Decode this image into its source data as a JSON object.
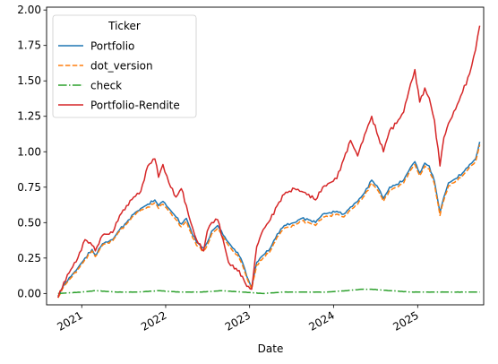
{
  "chart_data": {
    "type": "line",
    "title": "",
    "xlabel": "Date",
    "ylabel": "",
    "x_range": [
      "2020-08-01",
      "2025-10-15"
    ],
    "ylim": [
      -0.08,
      2.02
    ],
    "grid": false,
    "legend": {
      "title": "Ticker",
      "placement": "top-left"
    },
    "x_ticks": [
      {
        "date": "2021-01-01",
        "label": "2021"
      },
      {
        "date": "2022-01-01",
        "label": "2022"
      },
      {
        "date": "2023-01-01",
        "label": "2023"
      },
      {
        "date": "2024-01-01",
        "label": "2024"
      },
      {
        "date": "2025-01-01",
        "label": "2025"
      }
    ],
    "y_ticks": [
      {
        "value": 0.0,
        "label": "0.00"
      },
      {
        "value": 0.25,
        "label": "0.25"
      },
      {
        "value": 0.5,
        "label": "0.50"
      },
      {
        "value": 0.75,
        "label": "0.75"
      },
      {
        "value": 1.0,
        "label": "1.00"
      },
      {
        "value": 1.25,
        "label": "1.25"
      },
      {
        "value": 1.5,
        "label": "1.50"
      },
      {
        "value": 1.75,
        "label": "1.75"
      },
      {
        "value": 2.0,
        "label": "2.00"
      }
    ],
    "series": [
      {
        "name": "Portfolio",
        "color": "#1f77b4",
        "dash": "solid",
        "x": [
          "2020-09-20",
          "2020-10-15",
          "2020-11-15",
          "2020-12-15",
          "2021-01-15",
          "2021-02-15",
          "2021-03-01",
          "2021-04-01",
          "2021-05-15",
          "2021-06-15",
          "2021-07-15",
          "2021-08-15",
          "2021-09-15",
          "2021-10-15",
          "2021-11-15",
          "2021-12-01",
          "2021-12-20",
          "2022-01-15",
          "2022-02-15",
          "2022-03-10",
          "2022-04-01",
          "2022-04-20",
          "2022-05-15",
          "2022-06-15",
          "2022-07-01",
          "2022-07-20",
          "2022-08-15",
          "2022-09-15",
          "2022-10-01",
          "2022-10-20",
          "2022-11-10",
          "2022-12-01",
          "2022-12-20",
          "2023-01-10",
          "2023-02-01",
          "2023-03-01",
          "2023-04-01",
          "2023-05-01",
          "2023-06-01",
          "2023-07-15",
          "2023-08-15",
          "2023-09-15",
          "2023-10-15",
          "2023-11-15",
          "2023-12-15",
          "2024-01-15",
          "2024-02-15",
          "2024-03-15",
          "2024-04-15",
          "2024-05-15",
          "2024-06-15",
          "2024-07-15",
          "2024-08-05",
          "2024-09-01",
          "2024-10-01",
          "2024-11-01",
          "2024-12-01",
          "2024-12-20",
          "2025-01-10",
          "2025-02-01",
          "2025-02-20",
          "2025-03-15",
          "2025-04-08",
          "2025-04-25",
          "2025-05-15",
          "2025-06-15",
          "2025-07-15",
          "2025-08-15",
          "2025-09-10",
          "2025-09-28"
        ],
        "values": [
          -0.02,
          0.06,
          0.12,
          0.18,
          0.25,
          0.31,
          0.27,
          0.35,
          0.38,
          0.45,
          0.5,
          0.56,
          0.6,
          0.63,
          0.66,
          0.62,
          0.65,
          0.6,
          0.54,
          0.49,
          0.53,
          0.45,
          0.36,
          0.32,
          0.36,
          0.44,
          0.48,
          0.4,
          0.36,
          0.32,
          0.29,
          0.22,
          0.12,
          0.04,
          0.22,
          0.27,
          0.32,
          0.42,
          0.48,
          0.5,
          0.53,
          0.52,
          0.5,
          0.56,
          0.57,
          0.58,
          0.56,
          0.61,
          0.65,
          0.71,
          0.8,
          0.74,
          0.67,
          0.75,
          0.77,
          0.8,
          0.89,
          0.93,
          0.85,
          0.92,
          0.9,
          0.79,
          0.57,
          0.68,
          0.78,
          0.81,
          0.85,
          0.91,
          0.95,
          1.07
        ]
      },
      {
        "name": "dot_version",
        "color": "#ff7f0e",
        "dash": "dashed",
        "x": [
          "2020-09-20",
          "2020-10-15",
          "2020-11-15",
          "2020-12-15",
          "2021-01-15",
          "2021-02-15",
          "2021-03-01",
          "2021-04-01",
          "2021-05-15",
          "2021-06-15",
          "2021-07-15",
          "2021-08-15",
          "2021-09-15",
          "2021-10-15",
          "2021-11-15",
          "2021-12-01",
          "2021-12-20",
          "2022-01-15",
          "2022-02-15",
          "2022-03-10",
          "2022-04-01",
          "2022-04-20",
          "2022-05-15",
          "2022-06-15",
          "2022-07-01",
          "2022-07-20",
          "2022-08-15",
          "2022-09-15",
          "2022-10-01",
          "2022-10-20",
          "2022-11-10",
          "2022-12-01",
          "2022-12-20",
          "2023-01-10",
          "2023-02-01",
          "2023-03-01",
          "2023-04-01",
          "2023-05-01",
          "2023-06-01",
          "2023-07-15",
          "2023-08-15",
          "2023-09-15",
          "2023-10-15",
          "2023-11-15",
          "2023-12-15",
          "2024-01-15",
          "2024-02-15",
          "2024-03-15",
          "2024-04-15",
          "2024-05-15",
          "2024-06-15",
          "2024-07-15",
          "2024-08-05",
          "2024-09-01",
          "2024-10-01",
          "2024-11-01",
          "2024-12-01",
          "2024-12-20",
          "2025-01-10",
          "2025-02-01",
          "2025-02-20",
          "2025-03-15",
          "2025-04-08",
          "2025-04-25",
          "2025-05-15",
          "2025-06-15",
          "2025-07-15",
          "2025-08-15",
          "2025-09-10",
          "2025-09-28"
        ],
        "values": [
          -0.03,
          0.05,
          0.11,
          0.17,
          0.24,
          0.3,
          0.26,
          0.34,
          0.37,
          0.44,
          0.49,
          0.55,
          0.59,
          0.61,
          0.64,
          0.6,
          0.63,
          0.58,
          0.52,
          0.47,
          0.51,
          0.43,
          0.34,
          0.3,
          0.34,
          0.42,
          0.46,
          0.38,
          0.34,
          0.3,
          0.27,
          0.2,
          0.11,
          0.03,
          0.2,
          0.25,
          0.3,
          0.4,
          0.46,
          0.48,
          0.51,
          0.5,
          0.48,
          0.54,
          0.55,
          0.56,
          0.54,
          0.59,
          0.63,
          0.69,
          0.78,
          0.72,
          0.65,
          0.73,
          0.75,
          0.78,
          0.87,
          0.91,
          0.83,
          0.9,
          0.88,
          0.77,
          0.55,
          0.66,
          0.76,
          0.79,
          0.83,
          0.89,
          0.93,
          1.05
        ]
      },
      {
        "name": "check",
        "color": "#2ca02c",
        "dash": "dashdot",
        "x": [
          "2020-09-20",
          "2021-01-01",
          "2021-03-01",
          "2021-06-01",
          "2021-09-01",
          "2021-12-01",
          "2022-03-01",
          "2022-06-01",
          "2022-09-01",
          "2022-12-01",
          "2023-03-01",
          "2023-06-01",
          "2023-09-01",
          "2023-12-01",
          "2024-03-01",
          "2024-05-01",
          "2024-06-15",
          "2024-09-01",
          "2024-12-01",
          "2025-03-01",
          "2025-06-01",
          "2025-09-28"
        ],
        "values": [
          0.0,
          0.01,
          0.02,
          0.01,
          0.01,
          0.02,
          0.01,
          0.01,
          0.02,
          0.01,
          0.0,
          0.01,
          0.01,
          0.01,
          0.02,
          0.03,
          0.03,
          0.02,
          0.01,
          0.01,
          0.01,
          0.01
        ]
      },
      {
        "name": "Portfolio-Rendite",
        "color": "#d62728",
        "dash": "solid",
        "x": [
          "2020-09-20",
          "2020-10-15",
          "2020-11-15",
          "2020-12-15",
          "2021-01-15",
          "2021-02-15",
          "2021-03-01",
          "2021-04-01",
          "2021-05-15",
          "2021-06-15",
          "2021-07-15",
          "2021-08-15",
          "2021-09-15",
          "2021-10-15",
          "2021-11-15",
          "2021-12-01",
          "2021-12-20",
          "2022-01-15",
          "2022-02-15",
          "2022-03-10",
          "2022-04-01",
          "2022-04-20",
          "2022-05-15",
          "2022-06-15",
          "2022-07-01",
          "2022-07-20",
          "2022-08-15",
          "2022-09-15",
          "2022-10-01",
          "2022-10-20",
          "2022-11-10",
          "2022-12-01",
          "2022-12-20",
          "2023-01-10",
          "2023-02-01",
          "2023-03-01",
          "2023-04-01",
          "2023-05-01",
          "2023-06-01",
          "2023-07-15",
          "2023-08-15",
          "2023-09-15",
          "2023-10-15",
          "2023-11-15",
          "2023-12-15",
          "2024-01-15",
          "2024-02-15",
          "2024-03-15",
          "2024-04-15",
          "2024-05-15",
          "2024-06-15",
          "2024-07-15",
          "2024-08-05",
          "2024-09-01",
          "2024-10-01",
          "2024-11-01",
          "2024-12-01",
          "2024-12-20",
          "2025-01-10",
          "2025-02-01",
          "2025-02-20",
          "2025-03-15",
          "2025-04-08",
          "2025-04-25",
          "2025-05-15",
          "2025-06-15",
          "2025-07-15",
          "2025-08-15",
          "2025-09-10",
          "2025-09-28"
        ],
        "values": [
          -0.03,
          0.08,
          0.17,
          0.25,
          0.38,
          0.34,
          0.3,
          0.41,
          0.43,
          0.55,
          0.62,
          0.68,
          0.72,
          0.9,
          0.95,
          0.82,
          0.91,
          0.78,
          0.68,
          0.74,
          0.62,
          0.5,
          0.38,
          0.3,
          0.44,
          0.5,
          0.52,
          0.33,
          0.22,
          0.2,
          0.16,
          0.12,
          0.05,
          0.03,
          0.33,
          0.45,
          0.52,
          0.62,
          0.7,
          0.74,
          0.72,
          0.7,
          0.66,
          0.75,
          0.78,
          0.81,
          0.95,
          1.08,
          0.97,
          1.12,
          1.25,
          1.1,
          1.0,
          1.15,
          1.2,
          1.28,
          1.48,
          1.58,
          1.35,
          1.45,
          1.38,
          1.22,
          0.9,
          1.1,
          1.2,
          1.3,
          1.42,
          1.55,
          1.72,
          1.89
        ]
      }
    ]
  }
}
